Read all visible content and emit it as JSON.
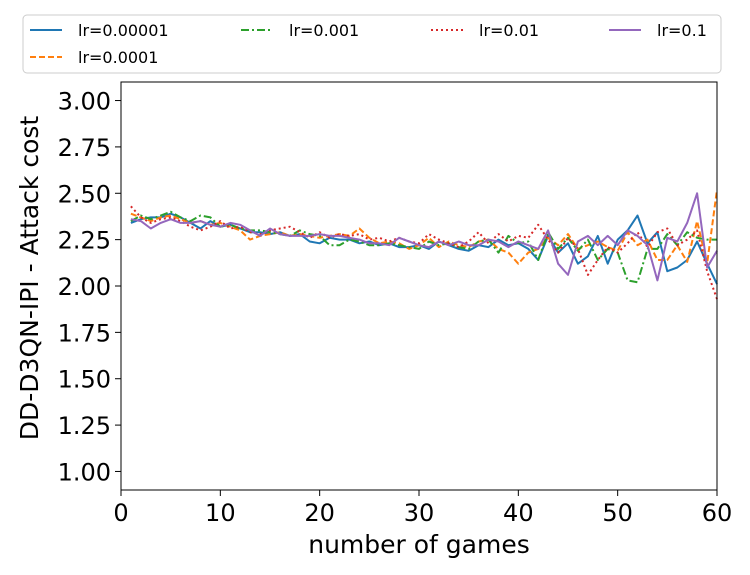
{
  "chart_data": {
    "type": "line",
    "xlabel": "number of games",
    "ylabel": "DD-D3QN-IPI - Attack cost",
    "xlim": [
      0,
      60
    ],
    "ylim": [
      0.9,
      3.1
    ],
    "xticks": [
      0,
      10,
      20,
      30,
      40,
      50,
      60
    ],
    "yticks": [
      1.0,
      1.25,
      1.5,
      1.75,
      2.0,
      2.25,
      2.5,
      2.75,
      3.0
    ],
    "ytick_labels": [
      "1.00",
      "1.25",
      "1.50",
      "1.75",
      "2.00",
      "2.25",
      "2.50",
      "2.75",
      "3.00"
    ],
    "grid": false,
    "legend_position": "top",
    "x": [
      1,
      2,
      3,
      4,
      5,
      6,
      7,
      8,
      9,
      10,
      11,
      12,
      13,
      14,
      15,
      16,
      17,
      18,
      19,
      20,
      21,
      22,
      23,
      24,
      25,
      26,
      27,
      28,
      29,
      30,
      31,
      32,
      33,
      34,
      35,
      36,
      37,
      38,
      39,
      40,
      41,
      42,
      43,
      44,
      45,
      46,
      47,
      48,
      49,
      50,
      51,
      52,
      53,
      54,
      55,
      56,
      57,
      58,
      59,
      60
    ],
    "series": [
      {
        "name": "lr=0.00001",
        "color": "#1f77b4",
        "dash": "solid",
        "values": [
          2.34,
          2.36,
          2.37,
          2.37,
          2.39,
          2.37,
          2.34,
          2.31,
          2.35,
          2.32,
          2.33,
          2.31,
          2.29,
          2.29,
          2.28,
          2.29,
          2.27,
          2.28,
          2.24,
          2.23,
          2.26,
          2.25,
          2.25,
          2.23,
          2.24,
          2.22,
          2.23,
          2.21,
          2.21,
          2.22,
          2.2,
          2.24,
          2.22,
          2.2,
          2.19,
          2.22,
          2.21,
          2.25,
          2.22,
          2.23,
          2.2,
          2.14,
          2.27,
          2.18,
          2.23,
          2.12,
          2.16,
          2.27,
          2.12,
          2.25,
          2.3,
          2.38,
          2.23,
          2.29,
          2.08,
          2.1,
          2.14,
          2.24,
          2.12,
          2.01
        ]
      },
      {
        "name": "lr=0.0001",
        "color": "#ff7f0e",
        "dash": "dashed",
        "values": [
          2.39,
          2.37,
          2.35,
          2.37,
          2.38,
          2.36,
          2.34,
          2.35,
          2.33,
          2.34,
          2.32,
          2.3,
          2.25,
          2.27,
          2.28,
          2.29,
          2.27,
          2.28,
          2.27,
          2.26,
          2.27,
          2.28,
          2.27,
          2.31,
          2.26,
          2.23,
          2.24,
          2.23,
          2.2,
          2.22,
          2.26,
          2.21,
          2.24,
          2.22,
          2.21,
          2.24,
          2.25,
          2.2,
          2.18,
          2.12,
          2.18,
          2.2,
          2.26,
          2.22,
          2.28,
          2.2,
          2.22,
          2.24,
          2.21,
          2.19,
          2.29,
          2.22,
          2.25,
          2.14,
          2.14,
          2.22,
          2.13,
          2.35,
          2.12,
          2.52
        ]
      },
      {
        "name": "lr=0.001",
        "color": "#2ca02c",
        "dash": "dashdot",
        "values": [
          2.35,
          2.38,
          2.36,
          2.38,
          2.4,
          2.37,
          2.35,
          2.38,
          2.37,
          2.32,
          2.33,
          2.31,
          2.3,
          2.3,
          2.29,
          2.28,
          2.27,
          2.3,
          2.28,
          2.27,
          2.22,
          2.22,
          2.25,
          2.24,
          2.22,
          2.22,
          2.23,
          2.22,
          2.21,
          2.2,
          2.24,
          2.22,
          2.23,
          2.21,
          2.2,
          2.24,
          2.25,
          2.18,
          2.27,
          2.23,
          2.24,
          2.14,
          2.29,
          2.2,
          2.26,
          2.19,
          2.25,
          2.14,
          2.2,
          2.18,
          2.03,
          2.02,
          2.2,
          2.2,
          2.28,
          2.22,
          2.29,
          2.26,
          2.25,
          2.25
        ]
      },
      {
        "name": "lr=0.01",
        "color": "#d62728",
        "dash": "dotted",
        "values": [
          2.43,
          2.37,
          2.34,
          2.36,
          2.37,
          2.35,
          2.32,
          2.3,
          2.32,
          2.35,
          2.31,
          2.32,
          2.29,
          2.28,
          2.3,
          2.31,
          2.32,
          2.29,
          2.26,
          2.29,
          2.26,
          2.28,
          2.27,
          2.28,
          2.25,
          2.26,
          2.24,
          2.26,
          2.24,
          2.23,
          2.28,
          2.25,
          2.23,
          2.21,
          2.24,
          2.29,
          2.23,
          2.28,
          2.24,
          2.27,
          2.26,
          2.33,
          2.25,
          2.18,
          2.26,
          2.2,
          2.06,
          2.14,
          2.21,
          2.18,
          2.23,
          2.29,
          2.21,
          2.29,
          2.31,
          2.22,
          2.25,
          2.3,
          2.08,
          1.93
        ]
      },
      {
        "name": "lr=0.1",
        "color": "#9467bd",
        "dash": "solid",
        "values": [
          2.36,
          2.35,
          2.31,
          2.34,
          2.36,
          2.34,
          2.34,
          2.35,
          2.33,
          2.32,
          2.34,
          2.33,
          2.3,
          2.27,
          2.31,
          2.28,
          2.27,
          2.27,
          2.27,
          2.28,
          2.27,
          2.27,
          2.26,
          2.25,
          2.23,
          2.23,
          2.22,
          2.26,
          2.24,
          2.22,
          2.21,
          2.24,
          2.22,
          2.24,
          2.22,
          2.22,
          2.25,
          2.24,
          2.21,
          2.24,
          2.22,
          2.2,
          2.3,
          2.12,
          2.06,
          2.24,
          2.27,
          2.22,
          2.27,
          2.22,
          2.3,
          2.27,
          2.22,
          2.03,
          2.26,
          2.24,
          2.34,
          2.5,
          2.1,
          2.19
        ]
      }
    ]
  }
}
